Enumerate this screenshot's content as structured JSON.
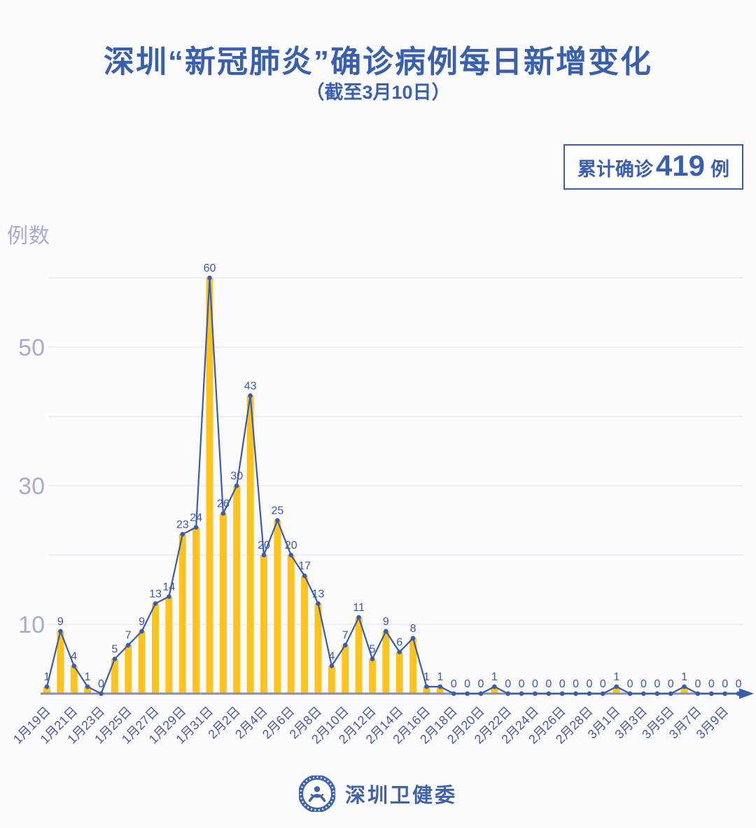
{
  "page": {
    "title": "深圳“新冠肺炎”确诊病例每日新增变化",
    "subtitle": "（截至3月10日）"
  },
  "badge": {
    "prefix": "累计确诊",
    "number": "419",
    "suffix": "例"
  },
  "footer": {
    "brand": "深圳卫健委",
    "logo": "shenzhen-health-commission-emblem"
  },
  "colors": {
    "title_blue": "#3A5FAD",
    "line_blue": "#3A5CAD",
    "value_blue": "#3A57A8",
    "date_blue": "#4A5AA0",
    "bar_yellow": "#FEC41D",
    "ytick_gray": "#A6ACCE",
    "grid_gray": "#E7E9F2",
    "axis_gray": "#8590AC",
    "badge_blue": "#3A5FAD",
    "brand_blue": "#3F62AD",
    "bg": "#FCFCFE"
  },
  "chart_data": {
    "type": "bar",
    "overlay": "line",
    "title": "深圳“新冠肺炎”确诊病例每日新增变化（截至3月10日）",
    "annotation": "累计确诊 419 例",
    "xlabel": "",
    "ylabel": "例数",
    "ylim": [
      0,
      62
    ],
    "grid": "horizontal",
    "gridlines_y": [
      10,
      20,
      30,
      40,
      50,
      60
    ],
    "yticks_labeled": [
      10,
      30,
      50
    ],
    "x_labeled_every": 2,
    "categories": [
      "1月19日",
      "1月20日",
      "1月21日",
      "1月22日",
      "1月23日",
      "1月24日",
      "1月25日",
      "1月26日",
      "1月27日",
      "1月28日",
      "1月29日",
      "1月30日",
      "1月31日",
      "2月1日",
      "2月2日",
      "2月3日",
      "2月4日",
      "2月5日",
      "2月6日",
      "2月7日",
      "2月8日",
      "2月9日",
      "2月10日",
      "2月11日",
      "2月12日",
      "2月13日",
      "2月14日",
      "2月15日",
      "2月16日",
      "2月17日",
      "2月18日",
      "2月19日",
      "2月20日",
      "2月21日",
      "2月22日",
      "2月23日",
      "2月24日",
      "2月25日",
      "2月26日",
      "2月27日",
      "2月28日",
      "2月29日",
      "3月1日",
      "3月2日",
      "3月3日",
      "3月4日",
      "3月5日",
      "3月6日",
      "3月7日",
      "3月8日",
      "3月9日",
      "3月10日"
    ],
    "values": [
      1,
      9,
      4,
      1,
      0,
      5,
      7,
      9,
      13,
      14,
      23,
      24,
      60,
      26,
      30,
      43,
      20,
      25,
      20,
      17,
      13,
      4,
      7,
      11,
      5,
      9,
      6,
      8,
      1,
      1,
      0,
      0,
      0,
      1,
      0,
      0,
      0,
      0,
      0,
      0,
      0,
      0,
      1,
      0,
      0,
      0,
      0,
      1,
      0,
      0,
      0,
      0
    ]
  }
}
